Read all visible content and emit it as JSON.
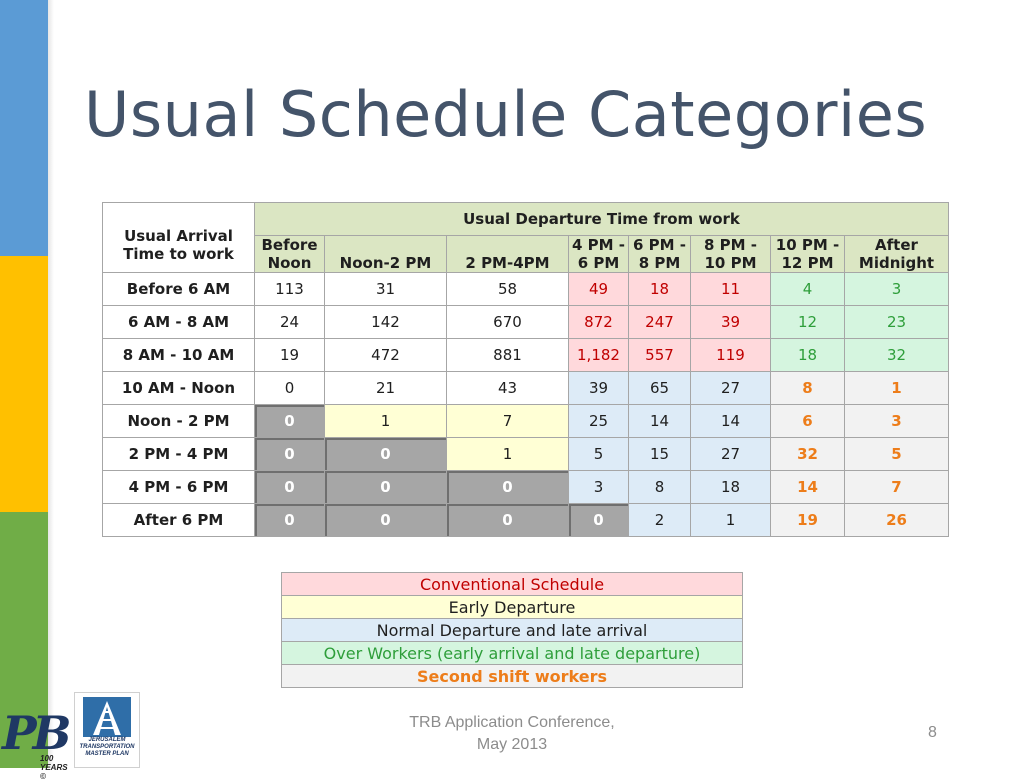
{
  "title": "Usual Schedule Categories",
  "table": {
    "corner_label": "Usual Arrival Time to work",
    "departure_header": "Usual Departure Time from work",
    "columns": [
      "Before Noon",
      "Noon-2 PM",
      "2 PM-4PM",
      "4 PM - 6 PM",
      "6 PM - 8 PM",
      "8 PM - 10 PM",
      "10 PM - 12 PM",
      "After Midnight"
    ],
    "rows": [
      {
        "label": "Before 6 AM",
        "values": [
          "113",
          "31",
          "58",
          "49",
          "18",
          "11",
          "4",
          "3"
        ]
      },
      {
        "label": "6 AM - 8 AM",
        "values": [
          "24",
          "142",
          "670",
          "872",
          "247",
          "39",
          "12",
          "23"
        ]
      },
      {
        "label": "8 AM - 10 AM",
        "values": [
          "19",
          "472",
          "881",
          "1,182",
          "557",
          "119",
          "18",
          "32"
        ]
      },
      {
        "label": "10 AM - Noon",
        "values": [
          "0",
          "21",
          "43",
          "39",
          "65",
          "27",
          "8",
          "1"
        ]
      },
      {
        "label": "Noon - 2 PM",
        "values": [
          "0",
          "1",
          "7",
          "25",
          "14",
          "14",
          "6",
          "3"
        ]
      },
      {
        "label": "2 PM - 4 PM",
        "values": [
          "0",
          "0",
          "1",
          "5",
          "15",
          "27",
          "32",
          "5"
        ]
      },
      {
        "label": "4 PM -  6 PM",
        "values": [
          "0",
          "0",
          "0",
          "3",
          "8",
          "18",
          "14",
          "7"
        ]
      },
      {
        "label": "After 6 PM",
        "values": [
          "0",
          "0",
          "0",
          "0",
          "2",
          "1",
          "19",
          "26"
        ]
      }
    ]
  },
  "legend": {
    "conventional": "Conventional Schedule",
    "early": "Early Departure",
    "normal": "Normal Departure and late arrival",
    "over": "Over Workers (early arrival and late departure)",
    "second": "Second shift workers"
  },
  "footer": {
    "line1": "TRB Application Conference,",
    "line2": "May 2013",
    "page_number": "8"
  },
  "logos": {
    "pb_text": "PB",
    "pb_years": "100 YEARS ©",
    "jtmp_line1": "JERUSALEM",
    "jtmp_line2": "TRANSPORTATION",
    "jtmp_line3": "MASTER PLAN"
  },
  "colors": {
    "title": "#44546a",
    "header_bg": "#dbe6c3",
    "conventional_bg": "#ffd9dc",
    "early_bg": "#ffffd5",
    "normal_bg": "#ddebf7",
    "over_bg": "#d5f5df",
    "second_bg": "#f2f2f2",
    "zero_bg": "#a6a6a6",
    "sidebar_blue": "#5b9bd5",
    "sidebar_yellow": "#ffc000",
    "sidebar_green": "#70ad47"
  }
}
